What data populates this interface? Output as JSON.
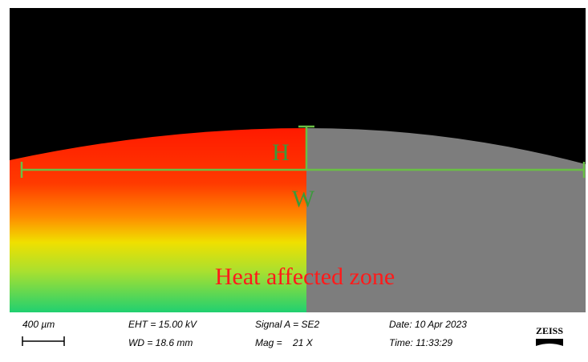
{
  "annotations": {
    "height_label": "H",
    "width_label": "W",
    "zone_label": "Heat affected zone"
  },
  "info_bar": {
    "scale": "400 µm",
    "eht": "EHT = 15.00 kV",
    "wd": "WD = 18.6 mm",
    "signal": "Signal A = SE2",
    "mag": "Mag =    21 X",
    "date": "Date: 10 Apr 2023",
    "time": "Time: 11:33:29",
    "logo": "ZEISS"
  }
}
